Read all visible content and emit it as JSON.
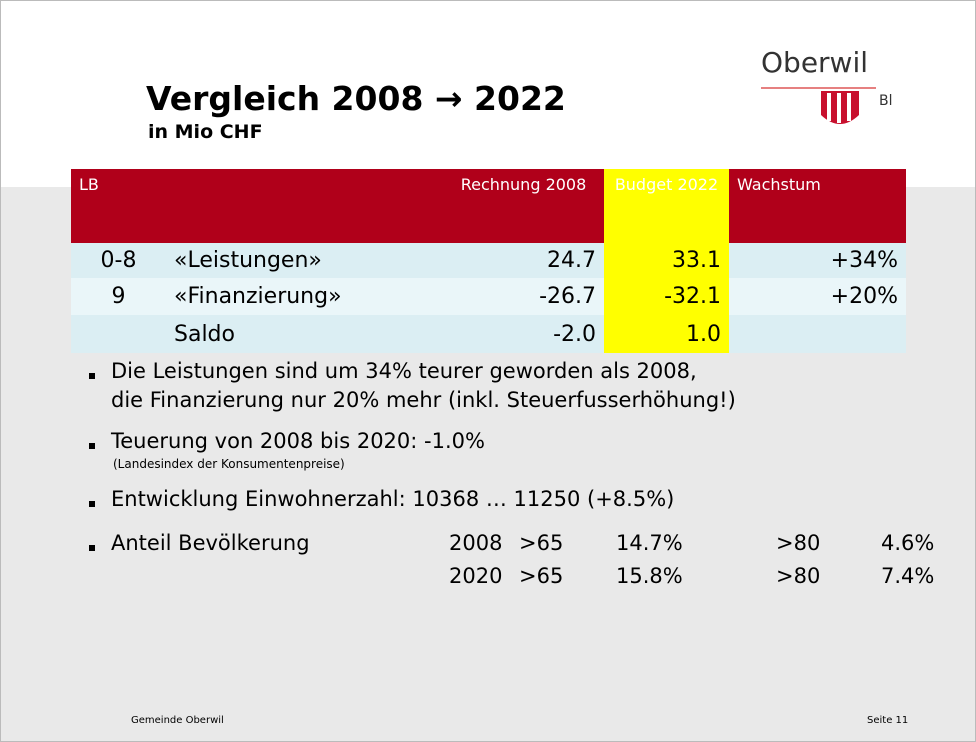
{
  "header": {
    "title": "Vergleich 2008 → 2022",
    "subtitle": "in Mio CHF",
    "logo_text": "Oberwil",
    "logo_suffix": "Bl"
  },
  "table": {
    "columns": [
      "LB",
      "",
      "Rechnung 2008",
      "Budget 2022",
      "Wachstum"
    ],
    "rows": [
      [
        "0-8",
        "«Leistungen»",
        "24.7",
        "33.1",
        "+34%"
      ],
      [
        "9",
        "«Finanzierung»",
        "-26.7",
        "-32.1",
        "+20%"
      ],
      [
        "",
        "Saldo",
        "-2.0",
        "1.0",
        ""
      ]
    ]
  },
  "bullets": [
    {
      "lines": [
        "Die Leistungen sind um 34% teurer geworden als 2008,",
        "die Finanzierung nur 20% mehr (inkl. Steuerfusserhöhung!)"
      ]
    },
    {
      "lines": [
        "Teuerung von 2008 bis 2020: -1.0%"
      ],
      "note": "(Landesindex der Konsumentenpreise)"
    },
    {
      "lines": [
        "Entwicklung Einwohnerzahl: 10368 … 11250 (+8.5%)"
      ]
    },
    {
      "lines": [
        "Anteil Bevölkerung"
      ],
      "rows": [
        [
          "2008",
          ">65",
          "14.7%",
          ">80",
          "4.6%"
        ],
        [
          "2020",
          ">65",
          "15.8%",
          ">80",
          "7.4%"
        ]
      ]
    }
  ],
  "footer": {
    "left": "Gemeinde Oberwil",
    "right": "Seite 11"
  }
}
